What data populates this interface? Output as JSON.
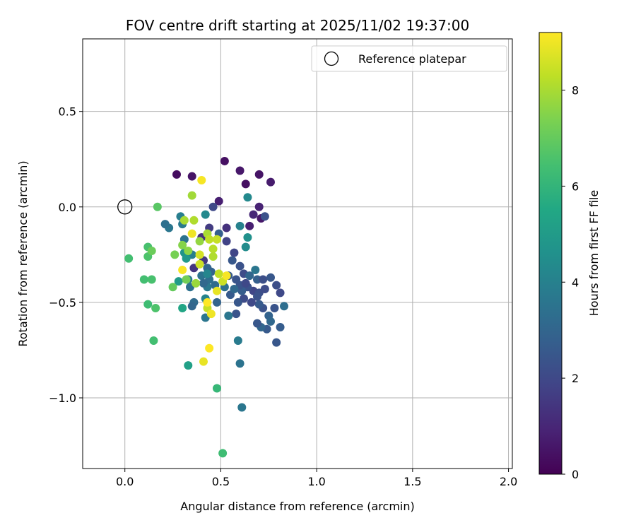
{
  "chart_data": {
    "type": "scatter",
    "title": "FOV centre drift starting at 2025/11/02 19:37:00",
    "xlabel": "Angular distance from reference (arcmin)",
    "ylabel": "Rotation from reference (arcmin)",
    "xlim": [
      -0.22,
      2.02
    ],
    "ylim": [
      -1.37,
      0.88
    ],
    "xticks": [
      0.0,
      0.5,
      1.0,
      1.5,
      2.0
    ],
    "xtick_labels": [
      "0.0",
      "0.5",
      "1.0",
      "1.5",
      "2.0"
    ],
    "yticks": [
      0.5,
      0.0,
      -0.5,
      -1.0
    ],
    "ytick_labels": [
      "0.5",
      "0.0",
      "−0.5",
      "−1.0"
    ],
    "grid": true,
    "legend": {
      "position": "top-right",
      "label": "Reference platepar"
    },
    "reference_point": {
      "x": 0.0,
      "y": 0.0
    },
    "colorbar": {
      "label": "Hours from first FF file",
      "min": 0,
      "max": 9.2,
      "ticks": [
        0,
        2,
        4,
        6,
        8
      ],
      "tick_labels": [
        "0",
        "2",
        "4",
        "6",
        "8"
      ],
      "colormap": "viridis"
    },
    "points": [
      {
        "x": 0.27,
        "y": 0.17,
        "h": 0.3
      },
      {
        "x": 0.35,
        "y": 0.16,
        "h": 0.5
      },
      {
        "x": 0.52,
        "y": 0.24,
        "h": 0.4
      },
      {
        "x": 0.6,
        "y": 0.19,
        "h": 0.6
      },
      {
        "x": 0.7,
        "y": 0.17,
        "h": 0.5
      },
      {
        "x": 0.76,
        "y": 0.13,
        "h": 0.7
      },
      {
        "x": 0.63,
        "y": 0.12,
        "h": 0.4
      },
      {
        "x": 0.49,
        "y": 0.03,
        "h": 0.8
      },
      {
        "x": 0.7,
        "y": 0.0,
        "h": 0.9
      },
      {
        "x": 0.67,
        "y": -0.04,
        "h": 1.0
      },
      {
        "x": 0.71,
        "y": -0.06,
        "h": 0.6
      },
      {
        "x": 0.65,
        "y": -0.1,
        "h": 0.8
      },
      {
        "x": 0.53,
        "y": -0.11,
        "h": 1.3
      },
      {
        "x": 0.44,
        "y": -0.11,
        "h": 1.6
      },
      {
        "x": 0.46,
        "y": 0.0,
        "h": 2.0
      },
      {
        "x": 0.73,
        "y": -0.05,
        "h": 2.3
      },
      {
        "x": 0.4,
        "y": -0.16,
        "h": 1.2
      },
      {
        "x": 0.49,
        "y": -0.14,
        "h": 2.8
      },
      {
        "x": 0.53,
        "y": -0.18,
        "h": 1.8
      },
      {
        "x": 0.57,
        "y": -0.24,
        "h": 1.9
      },
      {
        "x": 0.36,
        "y": -0.32,
        "h": 1.4
      },
      {
        "x": 0.41,
        "y": -0.28,
        "h": 1.5
      },
      {
        "x": 0.56,
        "y": -0.28,
        "h": 2.5
      },
      {
        "x": 0.6,
        "y": -0.31,
        "h": 2.3
      },
      {
        "x": 0.62,
        "y": -0.35,
        "h": 2.1
      },
      {
        "x": 0.54,
        "y": -0.36,
        "h": 2.6
      },
      {
        "x": 0.58,
        "y": -0.38,
        "h": 2.4
      },
      {
        "x": 0.65,
        "y": -0.36,
        "h": 3.0
      },
      {
        "x": 0.69,
        "y": -0.38,
        "h": 2.8
      },
      {
        "x": 0.72,
        "y": -0.38,
        "h": 2.2
      },
      {
        "x": 0.76,
        "y": -0.37,
        "h": 2.5
      },
      {
        "x": 0.79,
        "y": -0.41,
        "h": 2.2
      },
      {
        "x": 0.81,
        "y": -0.45,
        "h": 2.0
      },
      {
        "x": 0.83,
        "y": -0.52,
        "h": 3.3
      },
      {
        "x": 0.78,
        "y": -0.53,
        "h": 2.4
      },
      {
        "x": 0.75,
        "y": -0.57,
        "h": 2.9
      },
      {
        "x": 0.76,
        "y": -0.6,
        "h": 3.1
      },
      {
        "x": 0.74,
        "y": -0.64,
        "h": 2.6
      },
      {
        "x": 0.81,
        "y": -0.63,
        "h": 2.7
      },
      {
        "x": 0.71,
        "y": -0.63,
        "h": 3.0
      },
      {
        "x": 0.69,
        "y": -0.61,
        "h": 2.5
      },
      {
        "x": 0.79,
        "y": -0.71,
        "h": 2.5
      },
      {
        "x": 0.72,
        "y": -0.53,
        "h": 2.3
      },
      {
        "x": 0.7,
        "y": -0.51,
        "h": 2.6
      },
      {
        "x": 0.66,
        "y": -0.5,
        "h": 2.0
      },
      {
        "x": 0.62,
        "y": -0.48,
        "h": 2.1
      },
      {
        "x": 0.59,
        "y": -0.5,
        "h": 2.5
      },
      {
        "x": 0.58,
        "y": -0.56,
        "h": 2.4
      },
      {
        "x": 0.67,
        "y": -0.44,
        "h": 1.9
      },
      {
        "x": 0.64,
        "y": -0.42,
        "h": 2.3
      },
      {
        "x": 0.7,
        "y": -0.45,
        "h": 2.2
      },
      {
        "x": 0.61,
        "y": -0.44,
        "h": 2.7
      },
      {
        "x": 0.55,
        "y": -0.46,
        "h": 2.6
      },
      {
        "x": 0.6,
        "y": -0.41,
        "h": 2.4
      },
      {
        "x": 0.63,
        "y": -0.4,
        "h": 2.0
      },
      {
        "x": 0.68,
        "y": -0.33,
        "h": 3.6
      },
      {
        "x": 0.73,
        "y": -0.43,
        "h": 2.1
      },
      {
        "x": 0.69,
        "y": -0.47,
        "h": 2.3
      },
      {
        "x": 0.57,
        "y": -0.43,
        "h": 3.1
      },
      {
        "x": 0.52,
        "y": -0.42,
        "h": 3.4
      },
      {
        "x": 0.54,
        "y": -0.57,
        "h": 3.6
      },
      {
        "x": 0.59,
        "y": -0.7,
        "h": 3.8
      },
      {
        "x": 0.6,
        "y": -0.82,
        "h": 3.5
      },
      {
        "x": 0.61,
        "y": -1.05,
        "h": 3.6
      },
      {
        "x": 0.47,
        "y": -0.41,
        "h": 3.2
      },
      {
        "x": 0.48,
        "y": -0.5,
        "h": 2.9
      },
      {
        "x": 0.43,
        "y": -0.42,
        "h": 3.7
      },
      {
        "x": 0.4,
        "y": -0.36,
        "h": 3.5
      },
      {
        "x": 0.43,
        "y": -0.32,
        "h": 3.0
      },
      {
        "x": 0.44,
        "y": -0.38,
        "h": 3.3
      },
      {
        "x": 0.45,
        "y": -0.34,
        "h": 2.9
      },
      {
        "x": 0.41,
        "y": -0.4,
        "h": 3.1
      },
      {
        "x": 0.34,
        "y": -0.42,
        "h": 3.4
      },
      {
        "x": 0.36,
        "y": -0.5,
        "h": 3.2
      },
      {
        "x": 0.35,
        "y": -0.52,
        "h": 3.0
      },
      {
        "x": 0.42,
        "y": -0.58,
        "h": 3.6
      },
      {
        "x": 0.42,
        "y": -0.48,
        "h": 4.1
      },
      {
        "x": 0.43,
        "y": -0.35,
        "h": 4.2
      },
      {
        "x": 0.33,
        "y": -0.38,
        "h": 3.8
      },
      {
        "x": 0.35,
        "y": -0.25,
        "h": 3.9
      },
      {
        "x": 0.31,
        "y": -0.17,
        "h": 3.5
      },
      {
        "x": 0.3,
        "y": -0.09,
        "h": 3.7
      },
      {
        "x": 0.29,
        "y": -0.05,
        "h": 3.9
      },
      {
        "x": 0.23,
        "y": -0.11,
        "h": 3.6
      },
      {
        "x": 0.21,
        "y": -0.09,
        "h": 3.4
      },
      {
        "x": 0.42,
        "y": -0.04,
        "h": 4.3
      },
      {
        "x": 0.6,
        "y": -0.1,
        "h": 4.0
      },
      {
        "x": 0.64,
        "y": 0.05,
        "h": 4.3
      },
      {
        "x": 0.64,
        "y": -0.16,
        "h": 4.6
      },
      {
        "x": 0.63,
        "y": -0.21,
        "h": 4.4
      },
      {
        "x": 0.31,
        "y": -0.24,
        "h": 4.7
      },
      {
        "x": 0.32,
        "y": -0.27,
        "h": 4.9
      },
      {
        "x": 0.28,
        "y": -0.39,
        "h": 5.0
      },
      {
        "x": 0.3,
        "y": -0.53,
        "h": 5.4
      },
      {
        "x": 0.33,
        "y": -0.83,
        "h": 5.2
      },
      {
        "x": 0.48,
        "y": -0.95,
        "h": 6.1
      },
      {
        "x": 0.51,
        "y": -1.29,
        "h": 6.3
      },
      {
        "x": 0.02,
        "y": -0.27,
        "h": 6.4
      },
      {
        "x": 0.12,
        "y": -0.21,
        "h": 6.5
      },
      {
        "x": 0.12,
        "y": -0.26,
        "h": 6.6
      },
      {
        "x": 0.1,
        "y": -0.38,
        "h": 6.4
      },
      {
        "x": 0.14,
        "y": -0.38,
        "h": 6.5
      },
      {
        "x": 0.12,
        "y": -0.51,
        "h": 6.3
      },
      {
        "x": 0.16,
        "y": -0.53,
        "h": 6.6
      },
      {
        "x": 0.15,
        "y": -0.7,
        "h": 6.4
      },
      {
        "x": 0.17,
        "y": 0.0,
        "h": 6.8
      },
      {
        "x": 0.14,
        "y": -0.23,
        "h": 7.1
      },
      {
        "x": 0.25,
        "y": -0.42,
        "h": 7.0
      },
      {
        "x": 0.26,
        "y": -0.25,
        "h": 7.3
      },
      {
        "x": 0.3,
        "y": -0.2,
        "h": 7.5
      },
      {
        "x": 0.33,
        "y": -0.23,
        "h": 7.6
      },
      {
        "x": 0.32,
        "y": -0.38,
        "h": 7.2
      },
      {
        "x": 0.37,
        "y": -0.4,
        "h": 7.8
      },
      {
        "x": 0.35,
        "y": 0.06,
        "h": 7.9
      },
      {
        "x": 0.31,
        "y": -0.07,
        "h": 8.0
      },
      {
        "x": 0.36,
        "y": -0.07,
        "h": 8.1
      },
      {
        "x": 0.39,
        "y": -0.18,
        "h": 7.7
      },
      {
        "x": 0.43,
        "y": -0.14,
        "h": 8.0
      },
      {
        "x": 0.44,
        "y": -0.17,
        "h": 8.3
      },
      {
        "x": 0.46,
        "y": -0.22,
        "h": 8.2
      },
      {
        "x": 0.48,
        "y": -0.17,
        "h": 8.4
      },
      {
        "x": 0.46,
        "y": -0.26,
        "h": 8.1
      },
      {
        "x": 0.39,
        "y": -0.25,
        "h": 8.6
      },
      {
        "x": 0.39,
        "y": -0.3,
        "h": 8.5
      },
      {
        "x": 0.49,
        "y": -0.35,
        "h": 8.3
      },
      {
        "x": 0.51,
        "y": -0.39,
        "h": 8.5
      },
      {
        "x": 0.43,
        "y": -0.53,
        "h": 8.4
      },
      {
        "x": 0.35,
        "y": -0.14,
        "h": 9.0
      },
      {
        "x": 0.4,
        "y": 0.14,
        "h": 9.1
      },
      {
        "x": 0.3,
        "y": -0.33,
        "h": 9.1
      },
      {
        "x": 0.43,
        "y": -0.5,
        "h": 9.2
      },
      {
        "x": 0.45,
        "y": -0.56,
        "h": 9.0
      },
      {
        "x": 0.48,
        "y": -0.44,
        "h": 8.9
      },
      {
        "x": 0.53,
        "y": -0.36,
        "h": 9.1
      },
      {
        "x": 0.44,
        "y": -0.74,
        "h": 9.2
      },
      {
        "x": 0.41,
        "y": -0.81,
        "h": 8.9
      }
    ]
  }
}
